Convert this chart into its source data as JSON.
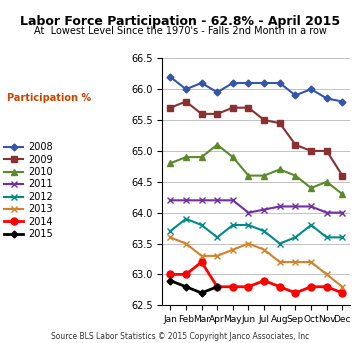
{
  "title": "Labor Force Participation - 62.8% - April 2015",
  "subtitle": "At  Lowest Level Since the 1970's - Falls 2nd Month in a row",
  "ylabel_legend": "Participation %",
  "source": "Source BLS Labor Statistics © 2015 Copyright Janco Associates, Inc",
  "ylim": [
    62.5,
    66.5
  ],
  "months": [
    "Jan",
    "Feb",
    "Mar",
    "Apr",
    "May",
    "Jun",
    "Jul",
    "Aug",
    "Sep",
    "Oct",
    "Nov",
    "Dec"
  ],
  "series": {
    "2008": {
      "color": "#3355aa",
      "marker": "D",
      "linewidth": 1.5,
      "markersize": 3.5,
      "values": [
        66.2,
        66.0,
        66.1,
        65.95,
        66.1,
        66.1,
        66.1,
        66.1,
        65.9,
        66.0,
        65.85,
        65.8
      ]
    },
    "2009": {
      "color": "#8b3030",
      "marker": "s",
      "linewidth": 1.5,
      "markersize": 4,
      "values": [
        65.7,
        65.8,
        65.6,
        65.6,
        65.7,
        65.7,
        65.5,
        65.45,
        65.1,
        65.0,
        65.0,
        64.6
      ]
    },
    "2010": {
      "color": "#5a8a2a",
      "marker": "^",
      "linewidth": 1.5,
      "markersize": 4,
      "values": [
        64.8,
        64.9,
        64.9,
        65.1,
        64.9,
        64.6,
        64.6,
        64.7,
        64.6,
        64.4,
        64.5,
        64.3
      ]
    },
    "2011": {
      "color": "#7030a0",
      "marker": "x",
      "linewidth": 1.5,
      "markersize": 5,
      "values": [
        64.2,
        64.2,
        64.2,
        64.2,
        64.2,
        64.0,
        64.05,
        64.1,
        64.1,
        64.1,
        64.0,
        64.0
      ]
    },
    "2012": {
      "color": "#008b8b",
      "marker": "x",
      "linewidth": 1.5,
      "markersize": 5,
      "values": [
        63.7,
        63.9,
        63.8,
        63.6,
        63.8,
        63.8,
        63.7,
        63.5,
        63.6,
        63.8,
        63.6,
        63.6
      ]
    },
    "2013": {
      "color": "#d4812a",
      "marker": "x",
      "linewidth": 1.5,
      "markersize": 5,
      "values": [
        63.6,
        63.5,
        63.3,
        63.3,
        63.4,
        63.5,
        63.4,
        63.2,
        63.2,
        63.2,
        63.0,
        62.8
      ]
    },
    "2014": {
      "color": "#ff0000",
      "marker": "o",
      "linewidth": 2.0,
      "markersize": 5,
      "values": [
        63.0,
        63.0,
        63.2,
        62.8,
        62.8,
        62.8,
        62.9,
        62.8,
        62.7,
        62.8,
        62.8,
        62.7
      ]
    },
    "2015": {
      "color": "#000000",
      "marker": "D",
      "linewidth": 2.0,
      "markersize": 3.5,
      "values": [
        62.9,
        62.8,
        62.7,
        62.8,
        null,
        null,
        null,
        null,
        null,
        null,
        null,
        null
      ]
    }
  }
}
